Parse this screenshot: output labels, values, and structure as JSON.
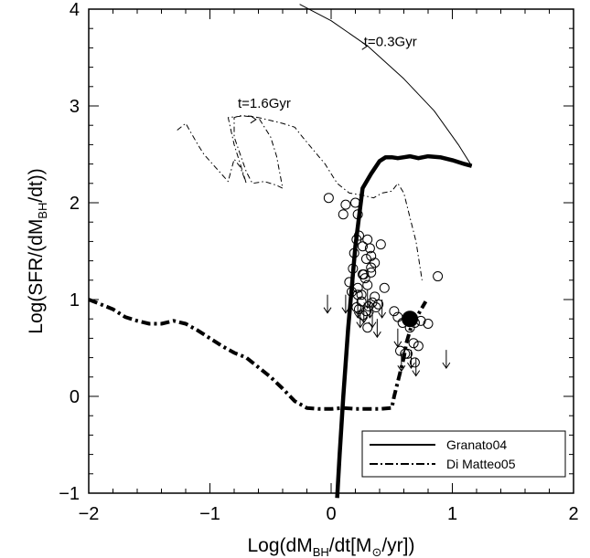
{
  "chart_data": {
    "type": "scatter",
    "xlabel_parts": [
      "Log(dM",
      "BH",
      "/dt[M",
      "⊙",
      "/yr])"
    ],
    "ylabel_parts": [
      "Log(SFR/(dM",
      "BH",
      "/dt))"
    ],
    "xlim": [
      -2,
      2
    ],
    "ylim": [
      -1,
      4
    ],
    "x_ticks": [
      -2,
      -1,
      0,
      1,
      2
    ],
    "x_tick_labels": [
      "−2",
      "−1",
      "0",
      "1",
      "2"
    ],
    "y_ticks": [
      -1,
      0,
      1,
      2,
      3,
      4
    ],
    "y_tick_labels": [
      "−1",
      "0",
      "1",
      "2",
      "3",
      "4"
    ],
    "grid": false,
    "legend_position": "bottom-right",
    "legend": [
      {
        "label": "Granato04",
        "style": "solid"
      },
      {
        "label": "Di Matteo05",
        "style": "dash-dot"
      }
    ],
    "annotations": [
      {
        "text": "t=0.3Gyr",
        "x": 0.27,
        "y": 3.62
      },
      {
        "text": "t=1.6Gyr",
        "x": -0.77,
        "y": 2.98
      }
    ],
    "series": [
      {
        "label": "Granato04 (thin)",
        "style": "solid-thin",
        "x": [
          -0.26,
          0.0,
          0.3,
          0.6,
          0.85,
          1.05,
          1.16
        ],
        "y": [
          4.05,
          3.88,
          3.62,
          3.28,
          2.95,
          2.6,
          2.38
        ]
      },
      {
        "label": "Granato04 (thick)",
        "style": "solid-thick",
        "x": [
          0.05,
          0.07,
          0.1,
          0.14,
          0.2,
          0.26,
          0.33,
          0.4,
          0.45,
          0.5,
          0.55,
          0.6,
          0.65,
          0.72,
          0.8,
          0.9,
          1.0,
          1.1,
          1.16
        ],
        "y": [
          -1.05,
          -0.6,
          0.0,
          0.7,
          1.55,
          2.15,
          2.3,
          2.43,
          2.47,
          2.47,
          2.46,
          2.47,
          2.48,
          2.46,
          2.48,
          2.47,
          2.44,
          2.4,
          2.38
        ]
      },
      {
        "label": "Di Matteo05 (thin)",
        "style": "dashdot-thin",
        "x": [
          -1.27,
          -1.2,
          -1.1,
          -1.05,
          -0.95,
          -0.85,
          -0.8,
          -0.75,
          -0.7,
          -0.8,
          -0.85,
          -0.7,
          -0.6,
          -0.5,
          -0.45,
          -0.4,
          -0.45,
          -0.55,
          -0.65,
          -0.7,
          -0.75,
          -0.8,
          -0.8,
          -0.75,
          -0.6,
          -0.5,
          -0.4,
          -0.3,
          -0.25,
          -0.15,
          -0.05,
          0.05,
          0.15,
          0.25,
          0.35,
          0.42,
          0.5,
          0.55,
          0.6,
          0.65,
          0.7,
          0.75
        ],
        "y": [
          2.75,
          2.82,
          2.6,
          2.5,
          2.36,
          2.22,
          2.45,
          2.37,
          2.2,
          2.6,
          2.88,
          2.9,
          2.88,
          2.68,
          2.48,
          2.15,
          2.18,
          2.22,
          2.2,
          2.32,
          2.5,
          2.68,
          2.88,
          2.9,
          2.88,
          2.85,
          2.82,
          2.78,
          2.7,
          2.55,
          2.4,
          2.2,
          2.1,
          2.08,
          2.05,
          2.1,
          2.12,
          2.2,
          2.1,
          1.85,
          1.6,
          1.2
        ]
      },
      {
        "label": "Di Matteo05 (thick)",
        "style": "dashdot-thick",
        "x": [
          -2.0,
          -1.9,
          -1.8,
          -1.7,
          -1.6,
          -1.5,
          -1.4,
          -1.3,
          -1.2,
          -1.1,
          -1.0,
          -0.9,
          -0.8,
          -0.7,
          -0.6,
          -0.5,
          -0.4,
          -0.3,
          -0.2,
          -0.1,
          0.0,
          0.1,
          0.2,
          0.3,
          0.4,
          0.5,
          0.52,
          0.56,
          0.6,
          0.62,
          0.66,
          0.72,
          0.78
        ],
        "y": [
          1.0,
          0.95,
          0.9,
          0.82,
          0.78,
          0.75,
          0.75,
          0.78,
          0.75,
          0.68,
          0.6,
          0.52,
          0.45,
          0.4,
          0.3,
          0.2,
          0.08,
          -0.05,
          -0.12,
          -0.13,
          -0.13,
          -0.12,
          -0.13,
          -0.13,
          -0.13,
          -0.12,
          0.0,
          0.2,
          0.4,
          0.55,
          0.72,
          0.85,
          0.98
        ]
      },
      {
        "label": "Data points",
        "style": "open-circle",
        "x": [
          -0.02,
          0.1,
          0.12,
          0.2,
          0.21,
          0.19,
          0.18,
          0.23,
          0.22,
          0.26,
          0.29,
          0.3,
          0.32,
          0.33,
          0.36,
          0.41,
          0.15,
          0.17,
          0.22,
          0.26,
          0.28,
          0.33,
          0.22,
          0.25,
          0.27,
          0.3,
          0.33,
          0.36,
          0.21,
          0.23,
          0.26,
          0.29,
          0.31,
          0.37,
          0.39,
          0.44,
          0.52,
          0.55,
          0.59,
          0.65,
          0.69,
          0.74,
          0.8,
          0.88,
          0.25,
          0.3,
          0.34,
          0.61,
          0.72,
          0.57,
          0.63,
          0.68,
          0.69
        ],
        "y": [
          2.05,
          1.88,
          1.98,
          2.0,
          1.62,
          1.48,
          1.32,
          1.66,
          1.88,
          1.55,
          1.42,
          1.62,
          1.53,
          1.45,
          1.38,
          1.57,
          1.18,
          1.08,
          1.12,
          1.26,
          1.22,
          1.33,
          1.05,
          0.98,
          1.26,
          1.15,
          1.28,
          1.03,
          0.92,
          0.9,
          0.84,
          0.88,
          0.93,
          0.92,
          0.95,
          1.12,
          0.88,
          0.82,
          0.76,
          0.71,
          0.76,
          0.78,
          0.75,
          1.24,
          1.05,
          0.71,
          0.97,
          0.44,
          0.52,
          0.47,
          0.44,
          0.55,
          0.35
        ]
      },
      {
        "label": "Upper limit arrows",
        "style": "arrow-down",
        "x": [
          -0.03,
          0.12,
          0.22,
          0.24,
          0.27,
          0.3,
          0.32,
          0.34,
          0.38,
          0.42,
          0.55,
          0.58,
          0.66,
          0.7,
          0.95
        ],
        "y": [
          1.05,
          1.05,
          1.0,
          0.9,
          0.95,
          1.1,
          1.0,
          0.9,
          0.8,
          1.0,
          0.7,
          0.45,
          0.48,
          0.4,
          0.48
        ]
      },
      {
        "label": "Filled point",
        "style": "filled-circle",
        "x": [
          0.65
        ],
        "y": [
          0.8
        ]
      }
    ]
  }
}
